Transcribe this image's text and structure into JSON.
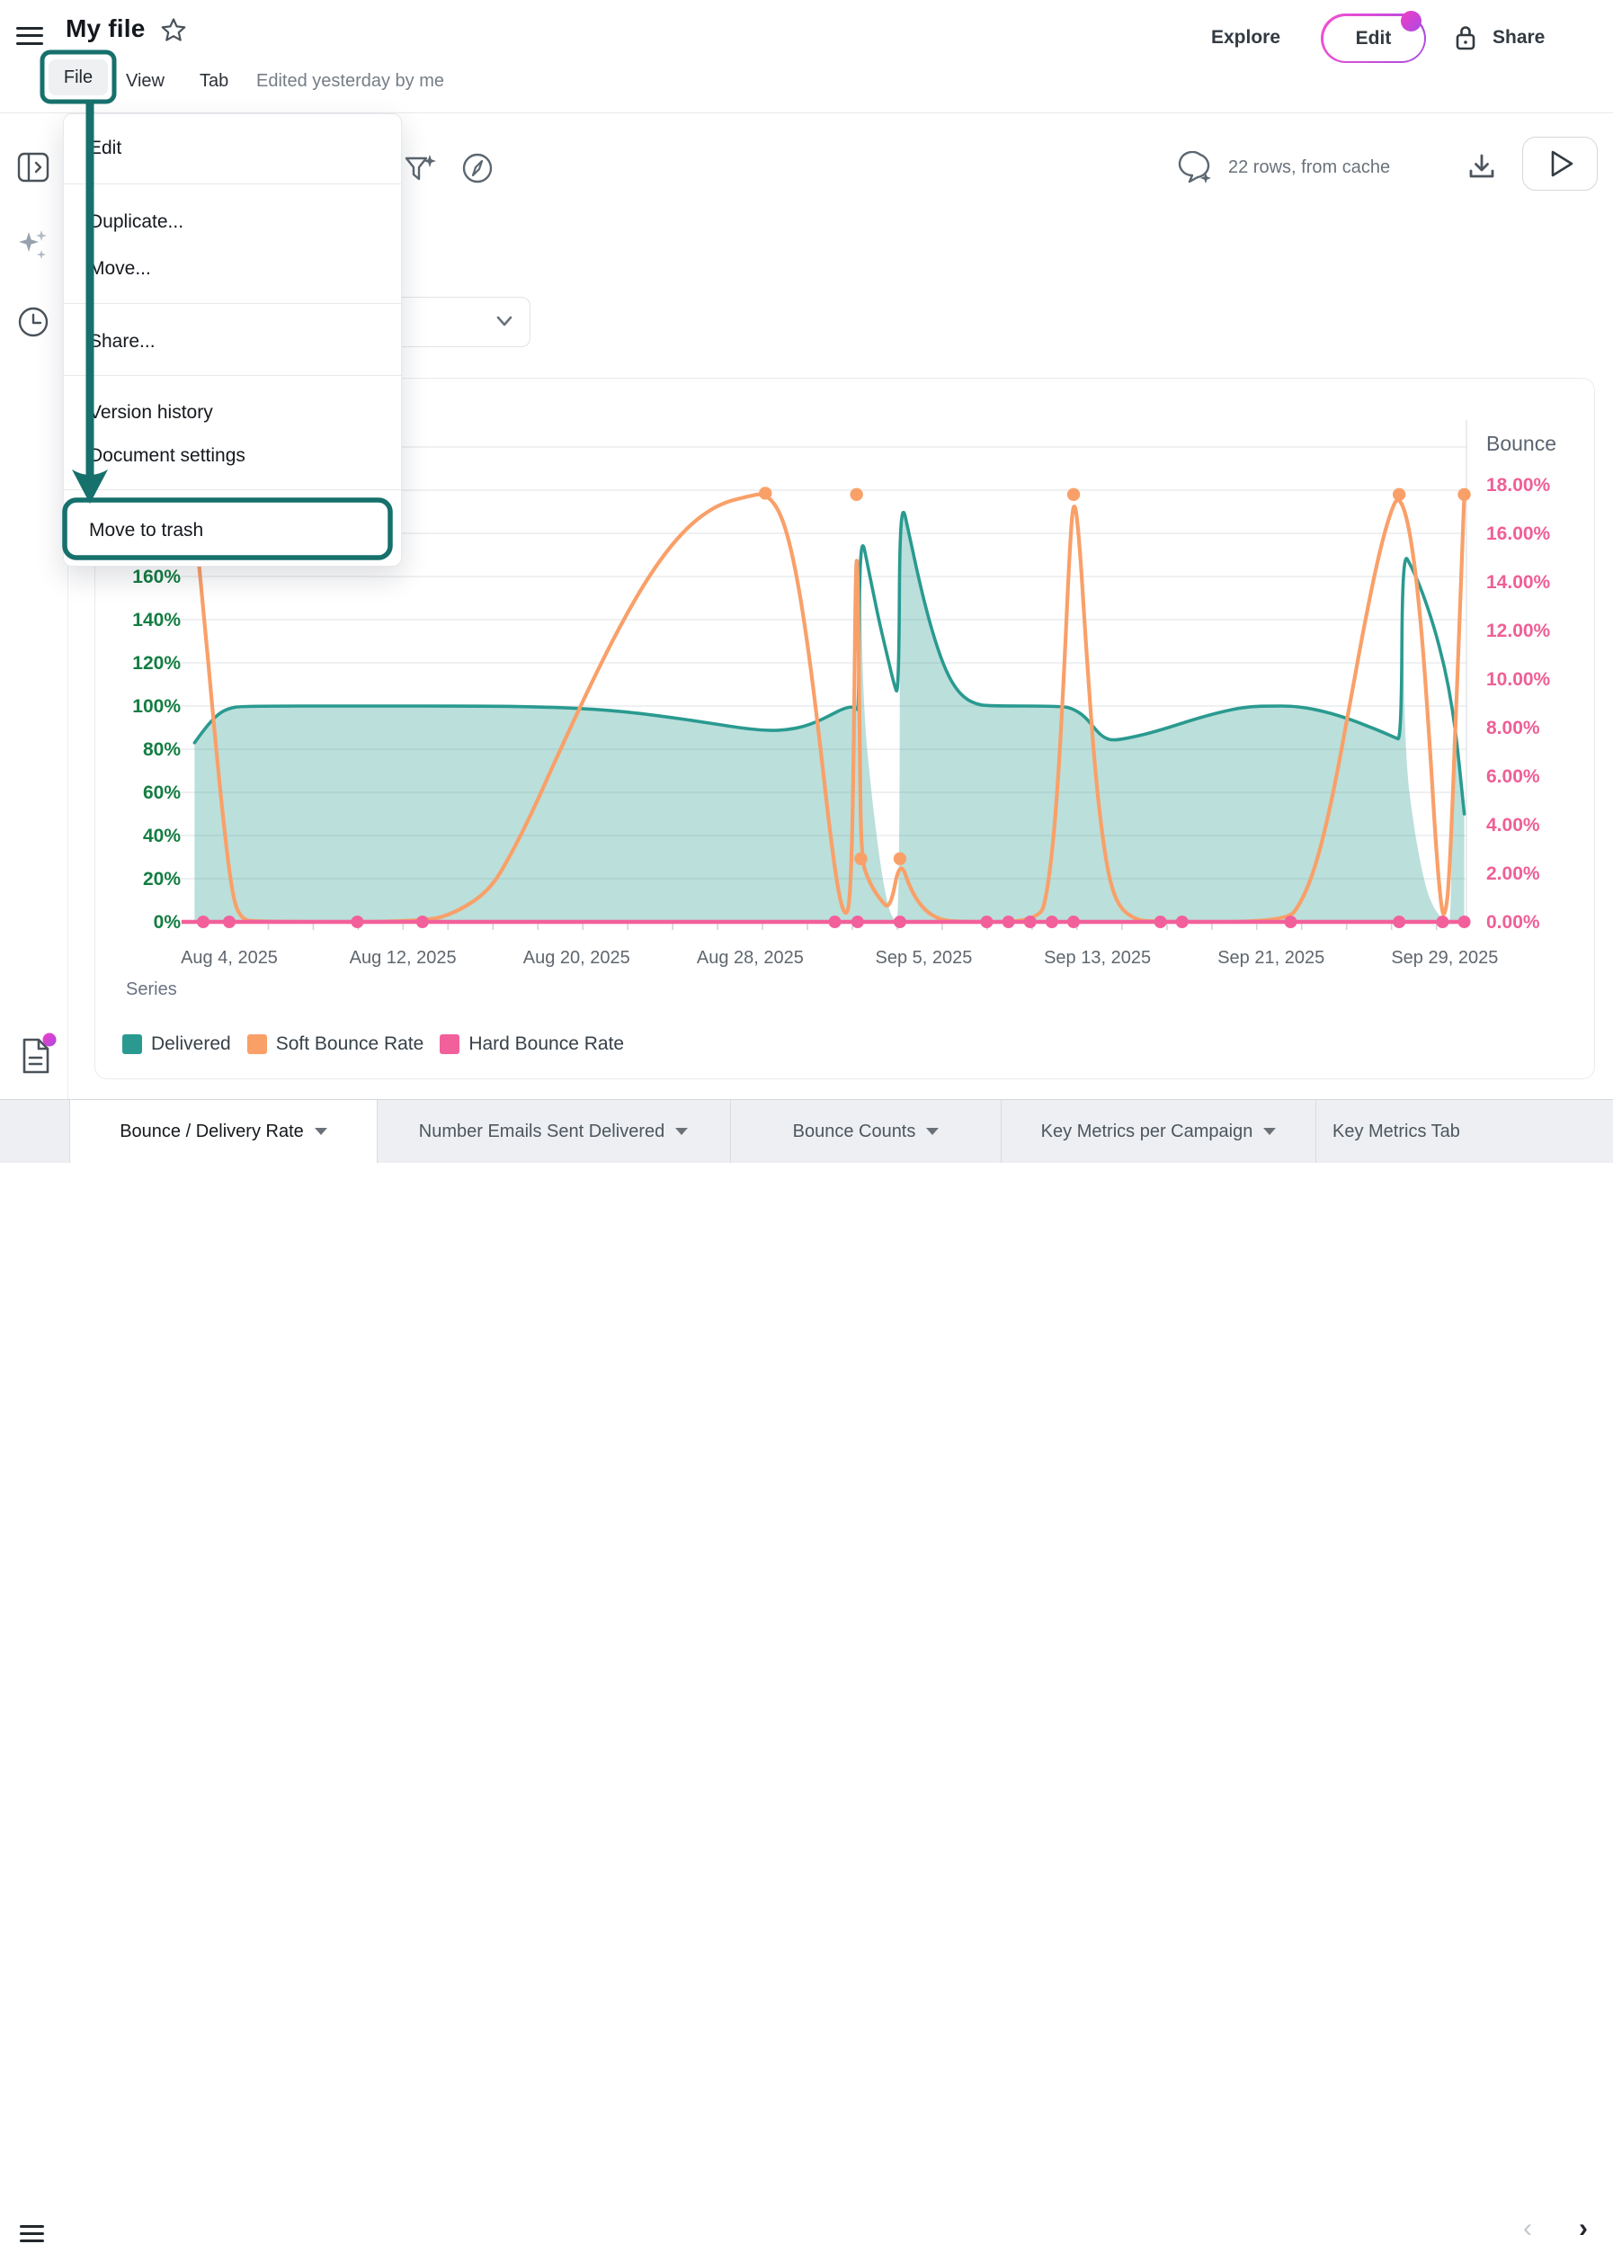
{
  "header": {
    "title": "My file",
    "menu_bar": {
      "file": "File",
      "view": "View",
      "tab": "Tab",
      "edited": "Edited yesterday by me"
    },
    "explore_label": "Explore",
    "edit_label": "Edit",
    "share_label": "Share"
  },
  "toolbar": {
    "rows_status": "22 rows, from cache"
  },
  "file_menu": {
    "items": [
      {
        "label": "Edit"
      },
      {
        "label": "Duplicate..."
      },
      {
        "label": "Move..."
      },
      {
        "label": "Share..."
      },
      {
        "label": "Version history"
      },
      {
        "label": "Document settings"
      },
      {
        "label": "Move to trash",
        "highlighted": true
      }
    ]
  },
  "annotations": {
    "color": "#16706c",
    "highlighted_item": "Move to trash",
    "source": "File"
  },
  "tabs": {
    "items": [
      {
        "label": "Bounce / Delivery Rate",
        "active": true
      },
      {
        "label": "Number Emails Sent Delivered",
        "active": false
      },
      {
        "label": "Bounce Counts",
        "active": false
      },
      {
        "label": "Key Metrics per Campaign",
        "active": false
      },
      {
        "label": "Key Metrics Tab",
        "active": false
      }
    ]
  },
  "chart_data": {
    "type": "area+line, dual y-axis, x = dates Aug 4 - Sep 29 2025 (day numbers relative to Aug 4)",
    "legend_label": "Series",
    "x_axis": {
      "tick_labels": [
        "Aug 4, 2025",
        "Aug 12, 2025",
        "Aug 20, 2025",
        "Aug 28, 2025",
        "Sep 5, 2025",
        "Sep 13, 2025",
        "Sep 21, 2025",
        "Sep 29, 2025"
      ],
      "tick_days": [
        0,
        8,
        16,
        24,
        32,
        40,
        48,
        56
      ],
      "domain_days": [
        -2.2,
        56.9
      ]
    },
    "left_axis": {
      "tick_labels": [
        "0%",
        "20%",
        "40%",
        "60%",
        "80%",
        "100%",
        "120%",
        "140%",
        "160%"
      ],
      "tick_values": [
        0,
        20,
        40,
        60,
        80,
        100,
        120,
        140,
        160
      ],
      "grid_values": [
        20,
        40,
        60,
        80,
        100,
        120,
        140,
        160,
        180,
        200,
        220
      ],
      "color": "#147d42"
    },
    "right_axis": {
      "title": "Bounce",
      "tick_labels": [
        "0.00%",
        "2.00%",
        "4.00%",
        "6.00%",
        "8.00%",
        "10.00%",
        "12.00%",
        "14.00%",
        "16.00%",
        "18.00%"
      ],
      "tick_values": [
        0,
        2,
        4,
        6,
        8,
        10,
        12,
        14,
        16,
        18
      ],
      "color": "#ef5f96"
    },
    "series": [
      {
        "name": "Delivered",
        "type": "area",
        "axis": "left",
        "color": "#2a9a90",
        "fill_opacity": 0.32,
        "line_points": [
          [
            -1.6,
            83
          ],
          [
            -1.1,
            90
          ],
          [
            -0.5,
            96.5
          ],
          [
            0,
            99
          ],
          [
            0.6,
            100
          ],
          [
            6,
            100
          ],
          [
            12,
            100
          ],
          [
            14,
            99.7
          ],
          [
            16,
            99
          ],
          [
            17.5,
            98
          ],
          [
            19,
            96.5
          ],
          [
            20.5,
            94.5
          ],
          [
            22,
            92.3
          ],
          [
            23,
            90.7
          ],
          [
            24,
            89.3
          ],
          [
            24.9,
            88.6
          ],
          [
            25.7,
            89
          ],
          [
            26.4,
            90.3
          ],
          [
            27.1,
            92.8
          ],
          [
            27.7,
            95.8
          ],
          [
            28.2,
            98.4
          ],
          [
            28.6,
            99.7
          ],
          [
            28.9,
            99.2
          ],
          [
            29,
            97.5
          ],
          [
            29.05,
            183
          ],
          [
            29.5,
            161
          ],
          [
            29.9,
            141
          ],
          [
            30.3,
            124
          ],
          [
            30.6,
            111
          ],
          [
            30.85,
            103.5
          ],
          [
            30.9,
            199
          ],
          [
            31.4,
            176
          ],
          [
            31.9,
            153
          ],
          [
            32.4,
            134
          ],
          [
            32.9,
            119
          ],
          [
            33.4,
            109
          ],
          [
            33.9,
            103.5
          ],
          [
            34.4,
            101
          ],
          [
            34.9,
            100
          ],
          [
            38.4,
            100
          ],
          [
            38.9,
            98.6
          ],
          [
            39.4,
            95.3
          ],
          [
            39.8,
            90.5
          ],
          [
            40.1,
            87
          ],
          [
            40.4,
            84.9
          ],
          [
            40.7,
            84.2
          ],
          [
            41.1,
            84.6
          ],
          [
            41.8,
            86
          ],
          [
            42.6,
            88
          ],
          [
            43.4,
            90.4
          ],
          [
            44.2,
            93
          ],
          [
            45,
            95.4
          ],
          [
            45.8,
            97.5
          ],
          [
            46.5,
            99
          ],
          [
            47.2,
            99.8
          ],
          [
            48,
            100
          ],
          [
            48.9,
            100
          ],
          [
            49.6,
            99.2
          ],
          [
            50.4,
            97.6
          ],
          [
            51.2,
            95.3
          ],
          [
            52,
            92.5
          ],
          [
            52.7,
            89.7
          ],
          [
            53.3,
            87.2
          ],
          [
            53.7,
            85.4
          ],
          [
            54,
            84.3
          ],
          [
            54.05,
            172
          ],
          [
            54.5,
            164
          ],
          [
            55,
            152
          ],
          [
            55.5,
            137
          ],
          [
            56,
            118
          ],
          [
            56.35,
            99
          ],
          [
            56.6,
            80
          ],
          [
            56.9,
            50
          ]
        ],
        "fill_points": [
          [
            -1.6,
            83
          ],
          [
            -1.1,
            90
          ],
          [
            -0.5,
            96.5
          ],
          [
            0,
            99
          ],
          [
            0.6,
            100
          ],
          [
            6,
            100
          ],
          [
            12,
            100
          ],
          [
            14,
            99.7
          ],
          [
            16,
            99
          ],
          [
            17.5,
            98
          ],
          [
            19,
            96.5
          ],
          [
            20.5,
            94.5
          ],
          [
            22,
            92.3
          ],
          [
            23,
            90.7
          ],
          [
            24,
            89.3
          ],
          [
            24.9,
            88.6
          ],
          [
            25.7,
            89
          ],
          [
            26.4,
            90.3
          ],
          [
            27.1,
            92.8
          ],
          [
            27.7,
            95.8
          ],
          [
            28.2,
            98.4
          ],
          [
            28.6,
            99.7
          ],
          [
            28.9,
            99.2
          ],
          [
            29,
            97.5
          ],
          [
            29.05,
            183
          ],
          [
            29.2,
            100
          ],
          [
            29.6,
            58
          ],
          [
            30,
            26
          ],
          [
            30.35,
            7
          ],
          [
            30.6,
            1
          ],
          [
            30.88,
            0
          ],
          [
            30.9,
            199
          ],
          [
            31.4,
            176
          ],
          [
            31.9,
            153
          ],
          [
            32.4,
            134
          ],
          [
            32.9,
            119
          ],
          [
            33.4,
            109
          ],
          [
            33.9,
            103.5
          ],
          [
            34.4,
            101
          ],
          [
            34.9,
            100
          ],
          [
            38.4,
            100
          ],
          [
            38.9,
            98.6
          ],
          [
            39.4,
            95.3
          ],
          [
            39.8,
            90.5
          ],
          [
            40.1,
            87
          ],
          [
            40.4,
            84.9
          ],
          [
            40.7,
            84.2
          ],
          [
            41.1,
            84.6
          ],
          [
            41.8,
            86
          ],
          [
            42.6,
            88
          ],
          [
            43.4,
            90.4
          ],
          [
            44.2,
            93
          ],
          [
            45,
            95.4
          ],
          [
            45.8,
            97.5
          ],
          [
            46.5,
            99
          ],
          [
            47.2,
            99.8
          ],
          [
            48,
            100
          ],
          [
            48.9,
            100
          ],
          [
            49.6,
            99.2
          ],
          [
            50.4,
            97.6
          ],
          [
            51.2,
            95.3
          ],
          [
            52,
            92.5
          ],
          [
            52.7,
            89.7
          ],
          [
            53.3,
            87.2
          ],
          [
            53.7,
            85.4
          ],
          [
            54,
            84.3
          ],
          [
            54.05,
            172
          ],
          [
            54.15,
            78
          ],
          [
            54.6,
            42
          ],
          [
            55.1,
            16
          ],
          [
            55.6,
            4
          ],
          [
            56.1,
            0.5
          ],
          [
            56.3,
            0
          ],
          [
            56.35,
            99
          ],
          [
            56.6,
            80
          ],
          [
            56.9,
            50
          ]
        ]
      },
      {
        "name": "Soft Bounce Rate",
        "type": "line",
        "axis": "right",
        "color": "#f9a069",
        "points": [
          [
            -2.2,
            20.4
          ],
          [
            -1.7,
            17.5
          ],
          [
            -1.2,
            13
          ],
          [
            -0.7,
            8
          ],
          [
            -0.2,
            3.5
          ],
          [
            0.2,
            0.8
          ],
          [
            0.6,
            0.1
          ],
          [
            1.2,
            0
          ],
          [
            9,
            0
          ],
          [
            10.5,
            0.4
          ],
          [
            12,
            1.3
          ],
          [
            13,
            2.8
          ],
          [
            14,
            4.6
          ],
          [
            15,
            6.6
          ],
          [
            16.5,
            9.5
          ],
          [
            18,
            12.2
          ],
          [
            19.5,
            14.5
          ],
          [
            21,
            16.2
          ],
          [
            22.5,
            17.2
          ],
          [
            24,
            17.55
          ],
          [
            24.7,
            17.65
          ],
          [
            25.4,
            16.9
          ],
          [
            26,
            15
          ],
          [
            26.6,
            11.8
          ],
          [
            27.2,
            7.5
          ],
          [
            27.7,
            3.5
          ],
          [
            28.1,
            1
          ],
          [
            28.4,
            0.2
          ],
          [
            28.6,
            0.8
          ],
          [
            28.75,
            5
          ],
          [
            28.9,
            17.6
          ],
          [
            29.05,
            8
          ],
          [
            29.1,
            2.6
          ],
          [
            29.5,
            1.6
          ],
          [
            30,
            0.9
          ],
          [
            30.45,
            0.5
          ],
          [
            30.9,
            2.6
          ],
          [
            31.4,
            1.3
          ],
          [
            32,
            0.5
          ],
          [
            32.7,
            0.1
          ],
          [
            33.5,
            0
          ],
          [
            37.3,
            0
          ],
          [
            37.7,
            1.2
          ],
          [
            38.1,
            4.5
          ],
          [
            38.45,
            10
          ],
          [
            38.7,
            15
          ],
          [
            38.9,
            17.6
          ],
          [
            39.15,
            16
          ],
          [
            39.5,
            11
          ],
          [
            39.9,
            6
          ],
          [
            40.4,
            2.3
          ],
          [
            40.9,
            0.7
          ],
          [
            41.7,
            0.1
          ],
          [
            42.5,
            0
          ],
          [
            48.7,
            0
          ],
          [
            49.4,
            0.8
          ],
          [
            50.1,
            2.4
          ],
          [
            50.8,
            5
          ],
          [
            51.5,
            8.3
          ],
          [
            52.2,
            11.8
          ],
          [
            52.9,
            14.9
          ],
          [
            53.5,
            16.9
          ],
          [
            53.9,
            17.6
          ],
          [
            54.4,
            16.2
          ],
          [
            54.9,
            12.5
          ],
          [
            55.3,
            7.5
          ],
          [
            55.6,
            3
          ],
          [
            55.85,
            0.5
          ],
          [
            56,
            0.2
          ],
          [
            56.2,
            1.5
          ],
          [
            56.5,
            8
          ],
          [
            56.75,
            14
          ],
          [
            56.9,
            17.6
          ]
        ],
        "markers": [
          [
            24.7,
            17.65
          ],
          [
            28.9,
            17.6
          ],
          [
            29.1,
            2.6
          ],
          [
            30.9,
            2.6
          ],
          [
            38.9,
            17.6
          ],
          [
            53.9,
            17.6
          ],
          [
            56.9,
            17.6
          ]
        ]
      },
      {
        "name": "Hard Bounce Rate",
        "type": "line",
        "axis": "right",
        "color": "#f2609b",
        "points": [
          [
            -2.2,
            0
          ],
          [
            56.9,
            0
          ]
        ],
        "marker_days": [
          -1.2,
          0,
          5.9,
          8.9,
          27.9,
          28.95,
          30.9,
          34.9,
          35.9,
          36.9,
          37.9,
          38.9,
          42.9,
          43.9,
          48.9,
          53.9,
          55.9,
          56.9
        ]
      }
    ]
  }
}
